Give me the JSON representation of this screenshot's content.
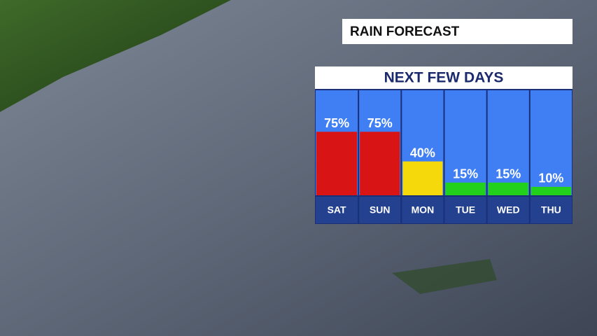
{
  "chart_data": {
    "type": "bar",
    "title": "RAIN FORECAST",
    "subtitle": "NEXT FEW DAYS",
    "categories": [
      "SAT",
      "SUN",
      "MON",
      "TUE",
      "WED",
      "THU"
    ],
    "values": [
      75,
      75,
      40,
      15,
      15,
      10
    ],
    "value_labels": [
      "75%",
      "75%",
      "40%",
      "15%",
      "15%",
      "10%"
    ],
    "colors": [
      "#d91414",
      "#d91414",
      "#f5d90a",
      "#22d11c",
      "#22d11c",
      "#22d11c"
    ],
    "ylim": [
      0,
      100
    ]
  }
}
